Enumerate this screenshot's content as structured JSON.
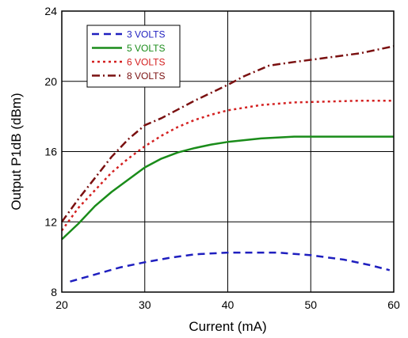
{
  "chart_data": {
    "type": "line",
    "title": "",
    "xlabel": "Current (mA)",
    "ylabel": "Output P1dB (dBm)",
    "xlim": [
      20,
      60
    ],
    "ylim": [
      8,
      24
    ],
    "xticks": [
      20,
      30,
      40,
      50,
      60
    ],
    "yticks": [
      8,
      12,
      16,
      20,
      24
    ],
    "xtick_labels": [
      "20",
      "30",
      "40",
      "50",
      "60"
    ],
    "ytick_labels": [
      "8",
      "12",
      "16",
      "20",
      "24"
    ],
    "grid": true,
    "legend_position": "top-left",
    "series": [
      {
        "name": "3 VOLTS",
        "color": "#1f1fbf",
        "dash": "dashed",
        "points": [
          [
            21,
            8.6
          ],
          [
            24,
            9.0
          ],
          [
            27,
            9.4
          ],
          [
            30,
            9.7
          ],
          [
            33,
            9.95
          ],
          [
            36,
            10.15
          ],
          [
            40,
            10.25
          ],
          [
            43,
            10.25
          ],
          [
            46,
            10.25
          ],
          [
            50,
            10.1
          ],
          [
            54,
            9.85
          ],
          [
            57,
            9.55
          ],
          [
            59.5,
            9.25
          ]
        ]
      },
      {
        "name": "5 VOLTS",
        "color": "#1a8c1a",
        "dash": "solid",
        "points": [
          [
            20,
            11.0
          ],
          [
            22,
            11.9
          ],
          [
            24,
            12.9
          ],
          [
            26,
            13.7
          ],
          [
            28,
            14.4
          ],
          [
            30,
            15.1
          ],
          [
            32,
            15.6
          ],
          [
            34,
            15.95
          ],
          [
            36,
            16.2
          ],
          [
            38,
            16.4
          ],
          [
            40,
            16.55
          ],
          [
            44,
            16.75
          ],
          [
            48,
            16.85
          ],
          [
            52,
            16.85
          ],
          [
            56,
            16.85
          ],
          [
            60,
            16.85
          ]
        ]
      },
      {
        "name": "6 VOLTS",
        "color": "#d42020",
        "dash": "dotted",
        "points": [
          [
            20,
            11.5
          ],
          [
            22,
            12.8
          ],
          [
            24,
            13.8
          ],
          [
            26,
            14.8
          ],
          [
            28,
            15.6
          ],
          [
            30,
            16.3
          ],
          [
            32,
            16.9
          ],
          [
            34,
            17.4
          ],
          [
            36,
            17.8
          ],
          [
            38,
            18.1
          ],
          [
            40,
            18.35
          ],
          [
            44,
            18.65
          ],
          [
            48,
            18.8
          ],
          [
            52,
            18.85
          ],
          [
            56,
            18.9
          ],
          [
            60,
            18.9
          ]
        ]
      },
      {
        "name": "8 VOLTS",
        "color": "#7a1010",
        "dash": "dashdot",
        "points": [
          [
            20,
            12.0
          ],
          [
            22,
            13.3
          ],
          [
            24,
            14.5
          ],
          [
            26,
            15.7
          ],
          [
            28,
            16.7
          ],
          [
            30,
            17.5
          ],
          [
            32,
            17.9
          ],
          [
            34,
            18.4
          ],
          [
            36,
            18.9
          ],
          [
            38,
            19.35
          ],
          [
            40,
            19.8
          ],
          [
            42,
            20.3
          ],
          [
            45,
            20.9
          ],
          [
            48,
            21.1
          ],
          [
            52,
            21.35
          ],
          [
            56,
            21.6
          ],
          [
            60,
            22.0
          ]
        ]
      }
    ]
  }
}
